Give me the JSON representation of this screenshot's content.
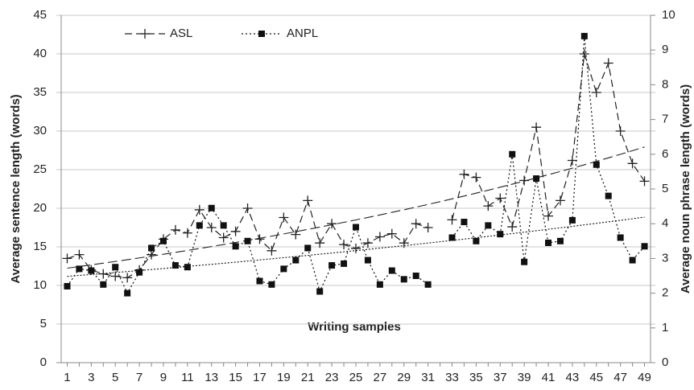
{
  "chart_data": {
    "type": "line",
    "x_label": "Writing samples",
    "y_label": "Average sentence length (words)",
    "y2_label": "Average noun phrase length (words)",
    "categories": [
      1,
      null,
      3,
      null,
      5,
      null,
      7,
      null,
      9,
      null,
      11,
      null,
      13,
      null,
      15,
      null,
      17,
      null,
      19,
      null,
      21,
      null,
      23,
      null,
      25,
      null,
      27,
      null,
      29,
      null,
      31,
      null,
      33,
      null,
      35,
      null,
      37,
      null,
      39,
      null,
      41,
      null,
      43,
      null,
      45,
      null,
      47,
      null,
      49
    ],
    "ylim": [
      0,
      45
    ],
    "yticks": [
      0,
      5,
      10,
      15,
      20,
      25,
      30,
      35,
      40,
      45
    ],
    "y2lim": [
      0,
      10
    ],
    "y2ticks": [
      0,
      1,
      2,
      3,
      4,
      5,
      6,
      7,
      8,
      9,
      10
    ],
    "grid": true,
    "legend": "top-left",
    "series": [
      {
        "name": "ASL",
        "color": "#222222",
        "line": "dashed",
        "marker": "plus",
        "trendline": "exponential",
        "values": [
          13.5,
          14,
          12,
          11.5,
          11.2,
          11,
          12,
          14,
          16,
          17.2,
          16.8,
          19.8,
          17.5,
          16.2,
          17,
          20,
          16,
          14.5,
          18.8,
          16.6,
          21,
          15.5,
          18,
          15.3,
          14.8,
          15.5,
          16.3,
          16.7,
          15.5,
          18,
          17.5,
          null,
          18.5,
          24.4,
          24,
          20.3,
          21.3,
          17.6,
          23.6,
          30.5,
          19,
          21,
          26.2,
          40,
          35,
          38.8,
          30,
          25.8,
          23.5
        ]
      },
      {
        "name": "ANPL",
        "color": "#111111",
        "line": "dotted",
        "marker": "square",
        "trendline": "exponential",
        "axis": "y2",
        "values": [
          2.2,
          2.7,
          2.65,
          2.25,
          2.75,
          2.0,
          2.6,
          3.3,
          3.5,
          2.8,
          2.75,
          3.95,
          4.45,
          3.95,
          3.35,
          3.5,
          2.35,
          2.25,
          2.7,
          2.95,
          3.3,
          2.05,
          2.8,
          2.85,
          3.9,
          2.95,
          2.25,
          2.65,
          2.4,
          2.5,
          2.25,
          null,
          3.6,
          4.05,
          3.5,
          3.95,
          3.7,
          6.0,
          2.9,
          5.3,
          3.45,
          3.5,
          4.1,
          9.4,
          5.7,
          4.8,
          3.6,
          2.95,
          3.35
        ]
      }
    ]
  }
}
